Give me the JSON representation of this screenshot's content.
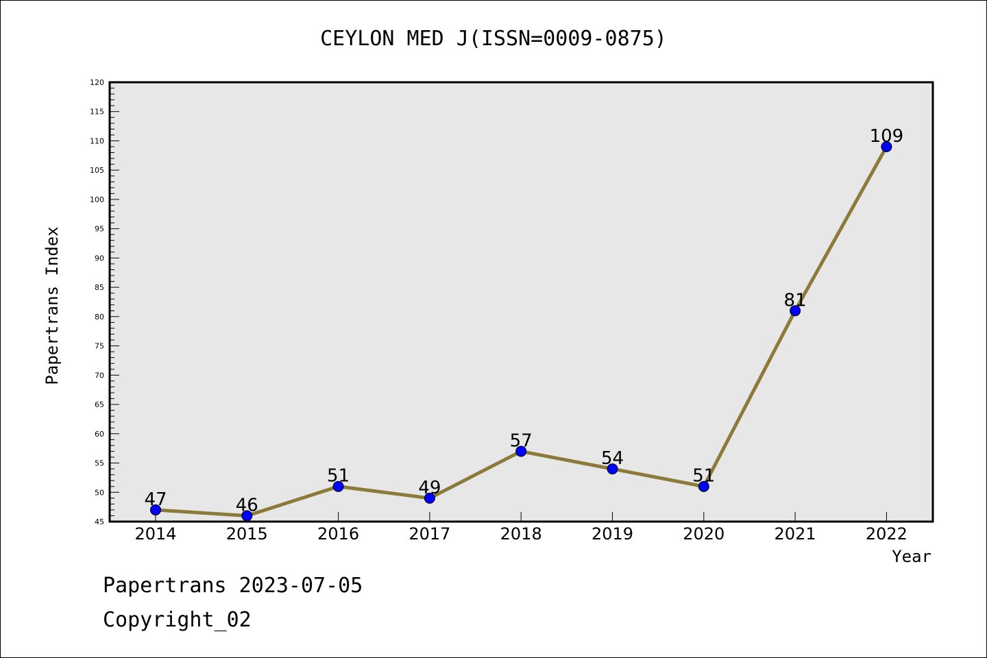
{
  "chart_data": {
    "type": "line",
    "title": "CEYLON MED J(ISSN=0009-0875)",
    "xlabel": "Year",
    "ylabel": "Papertrans Index",
    "categories": [
      "2014",
      "2015",
      "2016",
      "2017",
      "2018",
      "2019",
      "2020",
      "2021",
      "2022"
    ],
    "series": [
      {
        "values": [
          47,
          46,
          51,
          49,
          57,
          54,
          51,
          81,
          109
        ]
      }
    ],
    "ylim": [
      45,
      120
    ],
    "yticks": [
      45,
      50,
      55,
      60,
      65,
      70,
      75,
      80,
      85,
      90,
      95,
      100,
      105,
      110,
      115,
      120
    ],
    "grid": false,
    "line_color": "#8b7a3a",
    "marker_color": "#0000ff",
    "plot_background": "#e7e7e7"
  },
  "footer": {
    "line1": "Papertrans 2023-07-05",
    "line2": "Copyright_02"
  }
}
